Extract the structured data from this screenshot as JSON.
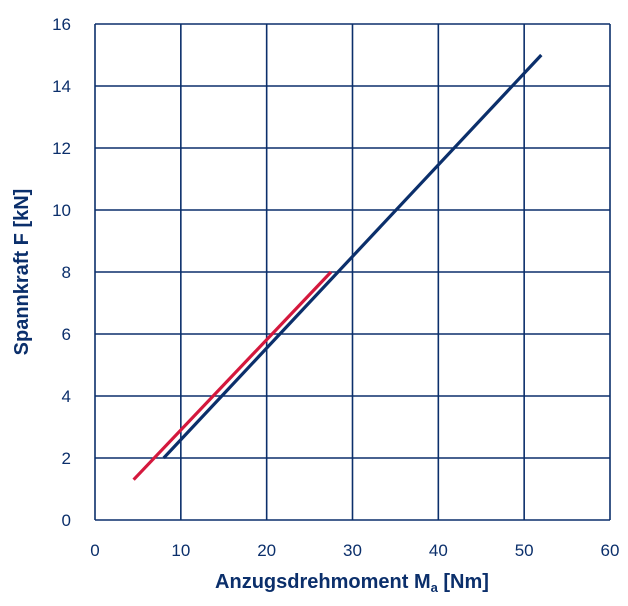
{
  "chart_data": {
    "type": "line",
    "title": "",
    "xlabel": "Anzugsdrehmoment M",
    "xlabel_subscript": "a",
    "xlabel_unit": " [Nm]",
    "ylabel": "Spannkraft F [kN]",
    "xlim": [
      0,
      60
    ],
    "ylim": [
      0,
      16
    ],
    "x_ticks": [
      "0",
      "10",
      "20",
      "30",
      "40",
      "50",
      "60"
    ],
    "y_ticks": [
      "0",
      "2",
      "4",
      "6",
      "8",
      "10",
      "12",
      "14",
      "16"
    ],
    "grid": true,
    "legend": "none",
    "series": [
      {
        "color": "#0b2f6b",
        "x": [
          8,
          52
        ],
        "y": [
          2,
          15
        ]
      },
      {
        "color": "#d4183d",
        "x": [
          4.5,
          27.5
        ],
        "y": [
          1.3,
          8
        ]
      }
    ]
  }
}
